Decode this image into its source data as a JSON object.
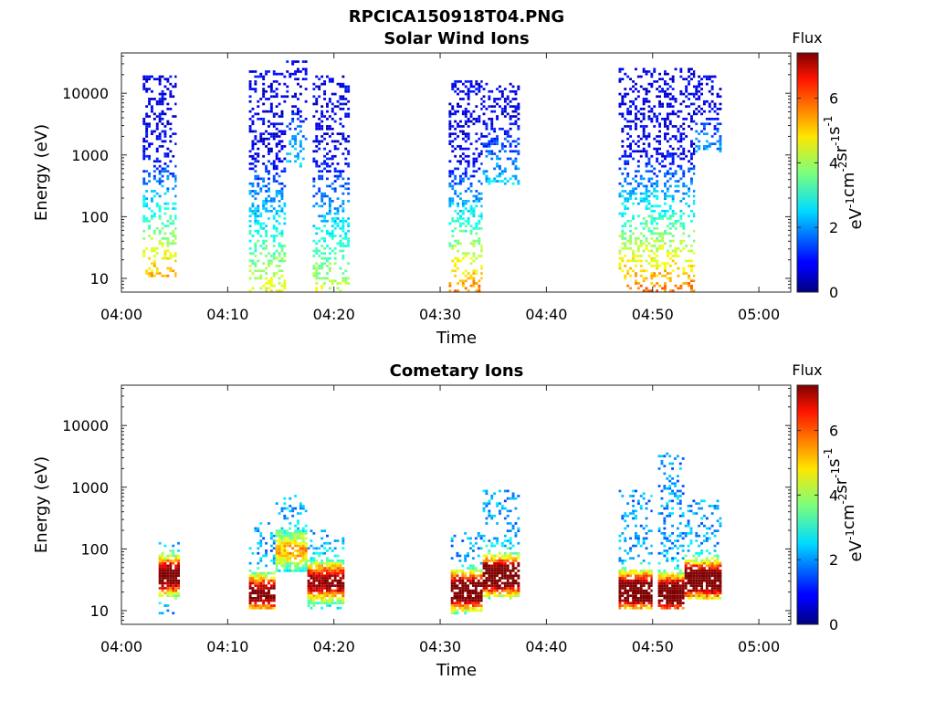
{
  "figure": {
    "title": "RPCICA150918T04.PNG"
  },
  "chart_data": [
    {
      "type": "heatmap",
      "title": "Solar Wind Ions",
      "xlabel": "Time",
      "ylabel": "Energy (eV)",
      "x_ticks": [
        "04:00",
        "04:10",
        "04:20",
        "04:30",
        "04:40",
        "04:50",
        "05:00"
      ],
      "x_range_minutes": [
        0,
        63
      ],
      "y_scale": "log",
      "y_ticks": [
        "10",
        "100",
        "1000",
        "10000"
      ],
      "y_range": [
        6,
        45000
      ],
      "colorbar": {
        "title": "Flux",
        "label": "eV-1cm-2sr-1s-1",
        "label_main": [
          "eV",
          "cm",
          "sr",
          "s"
        ],
        "label_exp": [
          "-1",
          "-2",
          "-1",
          "-1"
        ],
        "ticks": [
          "0",
          "2",
          "4",
          "6"
        ],
        "range": [
          0,
          7.4
        ],
        "colormap": "jet"
      },
      "bursts": [
        {
          "t_start": 2.0,
          "t_end": 5.2,
          "e_min": 10,
          "e_max": 18000,
          "low_flux_peak": 4.6
        },
        {
          "t_start": 12.0,
          "t_end": 15.5,
          "e_min": 6,
          "e_max": 22000,
          "low_flux_peak": 3.8
        },
        {
          "t_start": 15.5,
          "t_end": 17.5,
          "e_min": 600,
          "e_max": 32000,
          "low_flux_peak": 2.0
        },
        {
          "t_start": 18.0,
          "t_end": 21.5,
          "e_min": 6,
          "e_max": 18000,
          "low_flux_peak": 3.6
        },
        {
          "t_start": 30.8,
          "t_end": 34.0,
          "e_min": 6,
          "e_max": 15000,
          "low_flux_peak": 4.8
        },
        {
          "t_start": 34.0,
          "t_end": 37.5,
          "e_min": 300,
          "e_max": 14000,
          "low_flux_peak": 1.8
        },
        {
          "t_start": 46.8,
          "t_end": 54.0,
          "e_min": 6,
          "e_max": 24000,
          "low_flux_peak": 4.9
        },
        {
          "t_start": 54.0,
          "t_end": 56.5,
          "e_min": 1000,
          "e_max": 19000,
          "low_flux_peak": 1.5
        }
      ]
    },
    {
      "type": "heatmap",
      "title": "Cometary Ions",
      "xlabel": "Time",
      "ylabel": "Energy (eV)",
      "x_ticks": [
        "04:00",
        "04:10",
        "04:20",
        "04:30",
        "04:40",
        "04:50",
        "05:00"
      ],
      "x_range_minutes": [
        0,
        63
      ],
      "y_scale": "log",
      "y_ticks": [
        "10",
        "100",
        "1000",
        "10000"
      ],
      "y_range": [
        6,
        45000
      ],
      "colorbar": {
        "title": "Flux",
        "label": "eV-1cm-2sr-1s-1",
        "label_main": [
          "eV",
          "cm",
          "sr",
          "s"
        ],
        "label_exp": [
          "-1",
          "-2",
          "-1",
          "-1"
        ],
        "ticks": [
          "0",
          "2",
          "4",
          "6"
        ],
        "range": [
          0,
          7.4
        ],
        "colormap": "jet"
      },
      "bursts": [
        {
          "t_start": 3.5,
          "t_end": 5.5,
          "e_min": 8,
          "e_max": 120,
          "peak_energy": 35,
          "peak_flux": 6.3
        },
        {
          "t_start": 12.0,
          "t_end": 14.5,
          "e_min": 10,
          "e_max": 250,
          "peak_energy": 18,
          "peak_flux": 5.8
        },
        {
          "t_start": 14.5,
          "t_end": 17.5,
          "e_min": 40,
          "e_max": 700,
          "peak_energy": 90,
          "peak_flux": 3.2
        },
        {
          "t_start": 17.5,
          "t_end": 21.0,
          "e_min": 10,
          "e_max": 200,
          "peak_energy": 28,
          "peak_flux": 5.5
        },
        {
          "t_start": 31.0,
          "t_end": 34.0,
          "e_min": 8,
          "e_max": 180,
          "peak_energy": 20,
          "peak_flux": 6.8
        },
        {
          "t_start": 34.0,
          "t_end": 37.5,
          "e_min": 15,
          "e_max": 900,
          "peak_energy": 35,
          "peak_flux": 7.3
        },
        {
          "t_start": 46.8,
          "t_end": 50.0,
          "e_min": 10,
          "e_max": 900,
          "peak_energy": 20,
          "peak_flux": 7.0
        },
        {
          "t_start": 50.5,
          "t_end": 53.0,
          "e_min": 10,
          "e_max": 3500,
          "peak_energy": 18,
          "peak_flux": 6.8
        },
        {
          "t_start": 53.0,
          "t_end": 56.5,
          "e_min": 15,
          "e_max": 600,
          "peak_energy": 30,
          "peak_flux": 6.9
        }
      ]
    }
  ]
}
